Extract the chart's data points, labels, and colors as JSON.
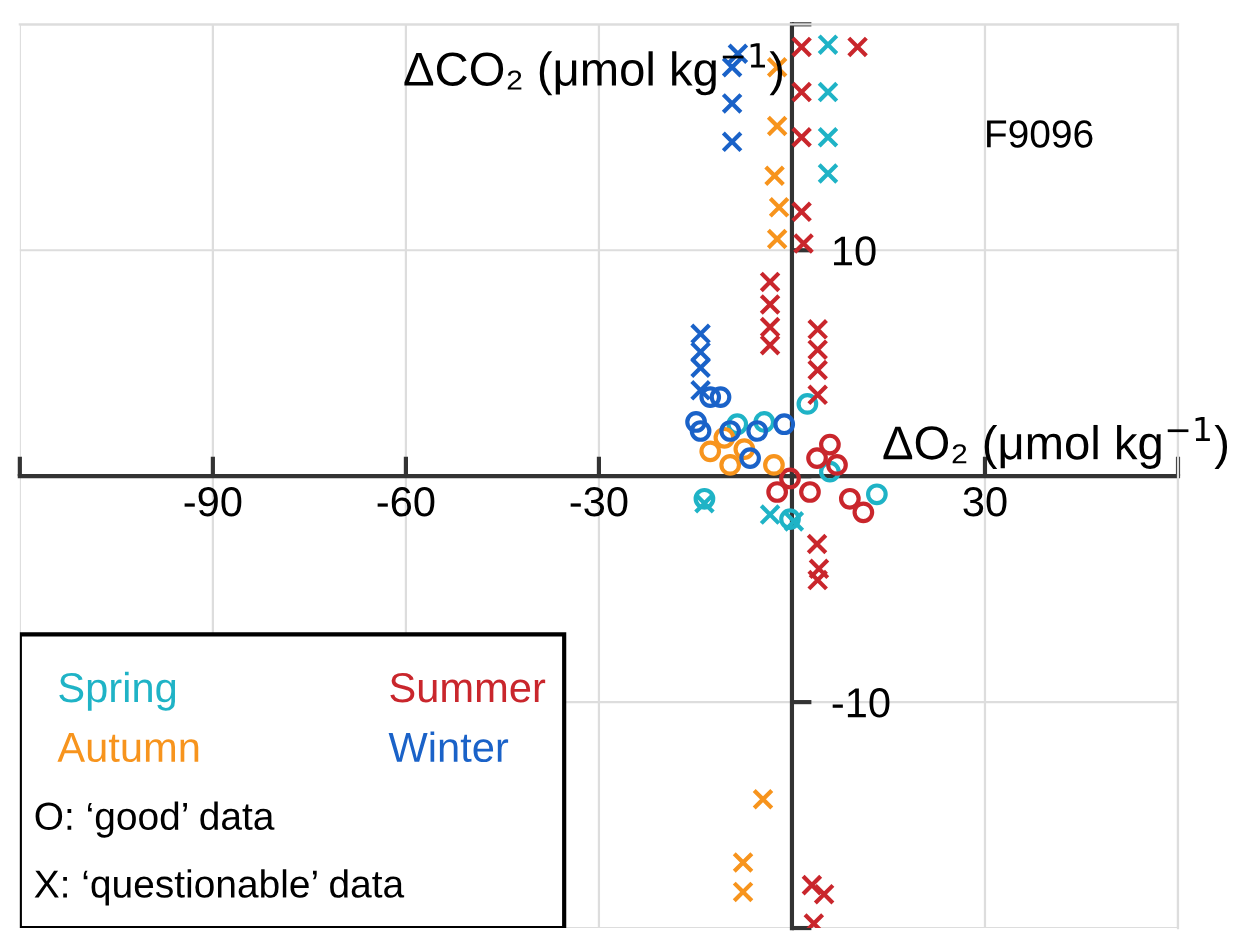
{
  "chart_data": {
    "type": "scatter",
    "xlabel": "ΔO₂ (μmol kg$^{−1}$)",
    "ylabel": "ΔCO₂ (μmol kg$^{−1}$)",
    "xlim": [
      -120,
      60
    ],
    "xticks": [
      {
        "value": -120,
        "label": null
      },
      -90,
      -60,
      -30,
      {
        "value": 0,
        "label": null
      },
      30,
      {
        "value": 60,
        "label": null
      }
    ],
    "ylim": [
      -20,
      20
    ],
    "yticks": [
      {
        "value": -20,
        "label": null
      },
      -10,
      {
        "value": 0,
        "label": null
      },
      10,
      {
        "value": 20,
        "label": null
      }
    ],
    "grid": true,
    "legend": "bottom left",
    "annotations": [
      "F9096",
      "O: ‘good’ data",
      "X: ‘questionable’ data"
    ],
    "series": [
      {
        "name": "Spring",
        "color": "#1fb3c6",
        "marker": "circle",
        "x": [
          13.2,
          2.4,
          -4.3,
          -13.6,
          -0.3,
          -8.5,
          5.9
        ],
        "values": [
          -0.8,
          3.2,
          2.4,
          -1.0,
          -1.9,
          2.3,
          0.2
        ]
      },
      {
        "name": "Summer",
        "color": "#c9262c",
        "marker": "circle",
        "x": [
          -0.3,
          3.9,
          7.0,
          9.0,
          11.1,
          2.8,
          5.9,
          -2.3
        ],
        "values": [
          -0.1,
          0.8,
          0.5,
          -1.0,
          -1.6,
          -0.7,
          1.4,
          -0.7
        ]
      },
      {
        "name": "Autumn",
        "color": "#f7941d",
        "marker": "circle",
        "x": [
          -12.7,
          -10.5,
          -9.6,
          -2.8,
          -7.4
        ],
        "values": [
          1.1,
          1.7,
          0.5,
          0.5,
          1.2
        ]
      },
      {
        "name": "Winter",
        "color": "#1a62c8",
        "marker": "circle",
        "x": [
          -14.9,
          -12.7,
          -11.1,
          -9.6,
          -5.4,
          -1.2,
          -6.5,
          -14.2
        ],
        "values": [
          2.4,
          3.5,
          3.5,
          2.0,
          2.0,
          2.3,
          0.8,
          2.0
        ]
      },
      {
        "color": "#1fb3c6",
        "marker": "cross",
        "x": [
          5.6,
          5.6,
          5.6,
          5.6,
          -13.6,
          0.3,
          -3.4
        ],
        "values": [
          19.1,
          17.0,
          15.0,
          13.4,
          -1.2,
          -2.0,
          -1.7
        ]
      },
      {
        "color": "#c9262c",
        "marker": "cross",
        "x": [
          1.5,
          10.2,
          1.5,
          1.5,
          1.5,
          1.8,
          -3.4,
          -3.4,
          -3.4,
          -3.4,
          4.0,
          4.0,
          4.0,
          4.0,
          3.9,
          4.2,
          4.0,
          3.1,
          5.0,
          3.4
        ],
        "values": [
          19.0,
          19.0,
          17.0,
          15.0,
          11.7,
          10.3,
          8.6,
          7.6,
          6.6,
          5.8,
          6.5,
          5.6,
          4.7,
          3.6,
          -3.0,
          -4.1,
          -4.6,
          -18.1,
          -18.5,
          -19.8
        ]
      },
      {
        "color": "#f7941d",
        "marker": "cross",
        "x": [
          -2.3,
          -2.3,
          -2.7,
          -2.0,
          -2.3,
          -4.5,
          -7.6,
          -7.6
        ],
        "values": [
          18.1,
          15.5,
          13.3,
          11.9,
          10.5,
          -14.3,
          -17.1,
          -18.4
        ]
      },
      {
        "color": "#1a62c8",
        "marker": "cross",
        "x": [
          -8.4,
          -9.3,
          -9.3,
          -9.3,
          -14.2,
          -14.2,
          -14.2,
          -14.2
        ],
        "values": [
          18.7,
          18.1,
          16.5,
          14.8,
          6.3,
          5.5,
          4.8,
          3.8
        ]
      }
    ]
  }
}
